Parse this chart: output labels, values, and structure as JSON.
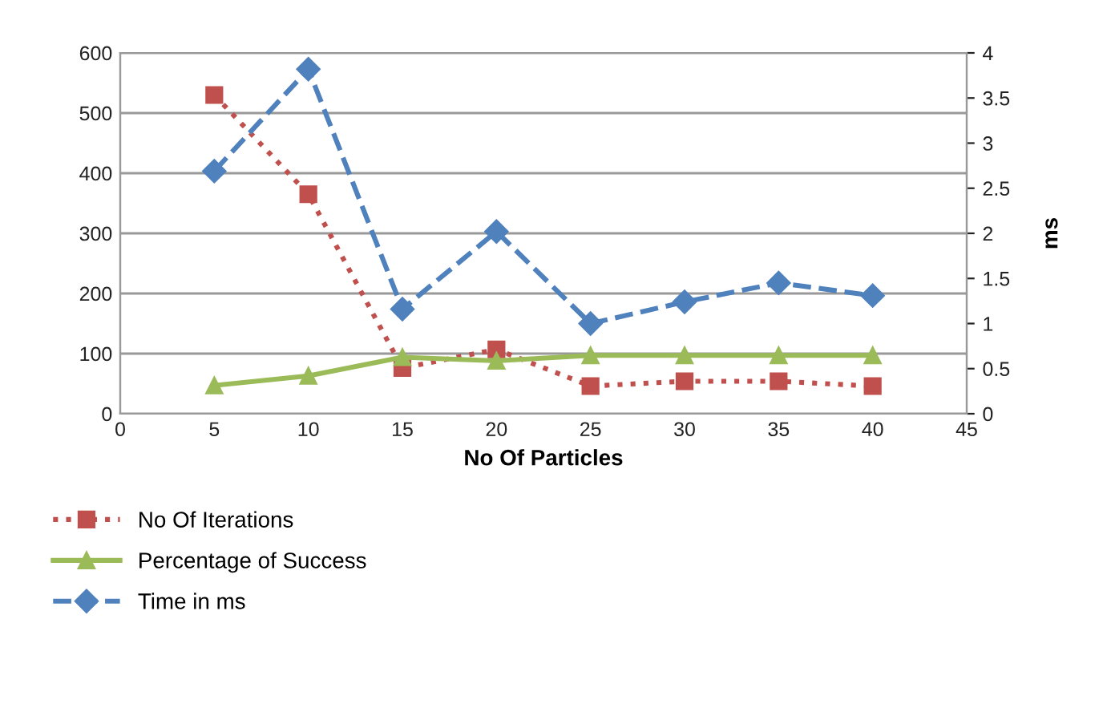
{
  "chart_data": {
    "type": "line",
    "xlabel": "No Of Particles",
    "y2label": "ms",
    "x": [
      5,
      10,
      15,
      20,
      25,
      30,
      35,
      40
    ],
    "series": [
      {
        "name": "No Of Iterations",
        "color": "#c0504d",
        "values": [
          530,
          365,
          76,
          107,
          46,
          54,
          54,
          46
        ],
        "marker": "square",
        "line_style": "dotted"
      },
      {
        "name": "Percentage of Success",
        "color": "#9bbb59",
        "values": [
          47,
          63,
          94,
          88,
          97,
          97,
          97,
          97
        ],
        "marker": "triangle",
        "line_style": "solid"
      },
      {
        "name": "Time in ms",
        "color": "#4f81bd",
        "values": [
          2.69,
          3.82,
          1.16,
          2.02,
          1.0,
          1.24,
          1.45,
          1.31
        ],
        "marker": "diamond",
        "line_style": "dashed",
        "axis": "y2"
      }
    ],
    "xlim": [
      0,
      45
    ],
    "xticks": [
      0,
      5,
      10,
      15,
      20,
      25,
      30,
      35,
      40,
      45
    ],
    "ylim": [
      0,
      600
    ],
    "yticks": [
      0,
      100,
      200,
      300,
      400,
      500,
      600
    ],
    "y2lim": [
      0,
      4
    ],
    "y2ticks": [
      0,
      0.5,
      1,
      1.5,
      2,
      2.5,
      3,
      3.5,
      4
    ],
    "grid": "y",
    "legend": "bottom left"
  }
}
